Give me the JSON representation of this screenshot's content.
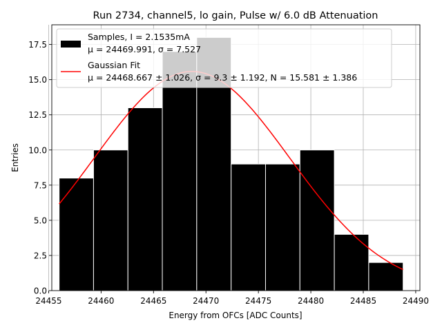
{
  "chart_data": {
    "type": "bar",
    "title": "Run 2734, channel5, lo gain, Pulse w/ 6.0 dB Attenuation",
    "xlabel": "Energy from OFCs [ADC Counts]",
    "ylabel": "Entries",
    "xlim": [
      24455.3,
      24490.4
    ],
    "ylim": [
      0,
      18.9
    ],
    "grid": true,
    "legend_position": "top-left",
    "x_ticks": [
      "24455",
      "24460",
      "24465",
      "24470",
      "24475",
      "24480",
      "24485",
      "24490"
    ],
    "x_tick_values": [
      24455,
      24460,
      24465,
      24470,
      24475,
      24480,
      24485,
      24490
    ],
    "y_ticks": [
      "0.0",
      "2.5",
      "5.0",
      "7.5",
      "10.0",
      "12.5",
      "15.0",
      "17.5"
    ],
    "y_tick_values": [
      0,
      2.5,
      5,
      7.5,
      10,
      12.5,
      15,
      17.5
    ],
    "histogram": {
      "bin_edges": [
        24456.0,
        24459.28,
        24462.56,
        24465.84,
        24469.12,
        24472.4,
        24475.68,
        24478.96,
        24482.24,
        24485.52,
        24488.8
      ],
      "counts": [
        8,
        10,
        13,
        17,
        18,
        9,
        9,
        10,
        4,
        2
      ],
      "color": "#000000"
    },
    "series": [
      {
        "name": "Samples, I = 2.1535mA",
        "name_line2": "μ = 24469.991, σ = 7.527",
        "kind": "histogram",
        "color": "#000000"
      },
      {
        "name": "Gaussian Fit",
        "name_line2": "μ = 24468.667 ± 1.026, σ = 9.3 ± 1.192, N = 15.581 ± 1.386",
        "kind": "line",
        "color": "#ff0000",
        "mu": 24468.667,
        "sigma": 9.3,
        "N": 15.581,
        "x_range": [
          24456.0,
          24488.8
        ]
      }
    ]
  }
}
